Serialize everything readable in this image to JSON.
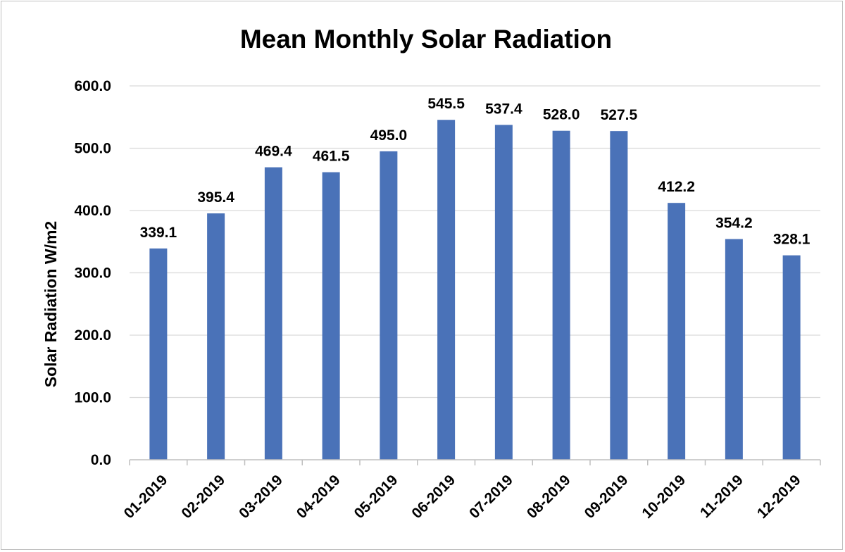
{
  "chart_data": {
    "type": "bar",
    "title": "Mean Monthly Solar Radiation",
    "xlabel": "",
    "ylabel": "Solar Radiation  W/m2",
    "categories": [
      "01-2019",
      "02-2019",
      "03-2019",
      "04-2019",
      "05-2019",
      "06-2019",
      "07-2019",
      "08-2019",
      "09-2019",
      "10-2019",
      "11-2019",
      "12-2019"
    ],
    "values": [
      339.1,
      395.4,
      469.4,
      461.5,
      495.0,
      545.5,
      537.4,
      528.0,
      527.5,
      412.2,
      354.2,
      328.1
    ],
    "data_labels": [
      "339.1",
      "395.4",
      "469.4",
      "461.5",
      "495.0",
      "545.5",
      "537.4",
      "528.0",
      "527.5",
      "412.2",
      "354.2",
      "328.1"
    ],
    "ylim": [
      0,
      600
    ],
    "yticks": [
      0,
      100,
      200,
      300,
      400,
      500,
      600
    ],
    "ytick_labels": [
      "0.0",
      "100.0",
      "200.0",
      "300.0",
      "400.0",
      "500.0",
      "600.0"
    ],
    "grid": true,
    "legend": "none",
    "bar_color": "#4a72b8"
  }
}
